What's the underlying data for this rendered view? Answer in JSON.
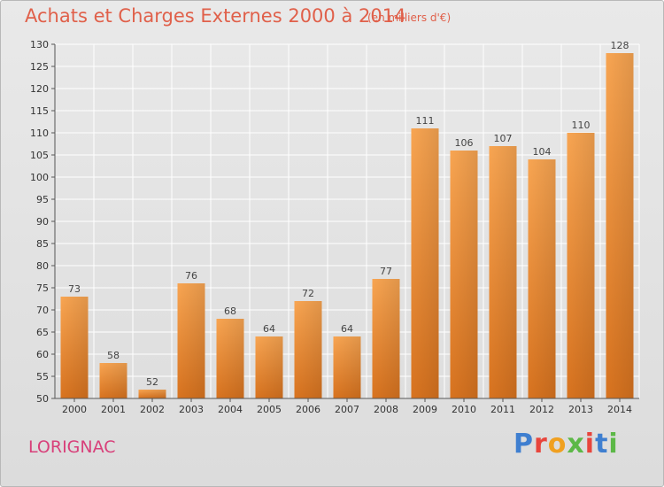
{
  "header": {
    "title": "Achats et Charges Externes 2000 à 2014",
    "subtitle": "(en milliers d'€)"
  },
  "footer": {
    "place": "LORIGNAC",
    "logo_letters": [
      "P",
      "r",
      "o",
      "x",
      "i",
      "t",
      "i"
    ]
  },
  "colors": {
    "title": "#e0604a",
    "place": "#d8407a",
    "bar_top": "#f8a552",
    "bar_bottom": "#d8731f",
    "grid": "#ffffff"
  },
  "chart_data": {
    "type": "bar",
    "title": "Achats et Charges Externes 2000 à 2014",
    "subtitle": "(en milliers d'€)",
    "categories": [
      "2000",
      "2001",
      "2002",
      "2003",
      "2004",
      "2005",
      "2006",
      "2007",
      "2008",
      "2009",
      "2010",
      "2011",
      "2012",
      "2013",
      "2014"
    ],
    "values": [
      73,
      58,
      52,
      76,
      68,
      64,
      72,
      64,
      77,
      111,
      106,
      107,
      104,
      110,
      128
    ],
    "ylim": [
      50,
      130
    ],
    "yticks": [
      50,
      55,
      60,
      65,
      70,
      75,
      80,
      85,
      90,
      95,
      100,
      105,
      110,
      115,
      120,
      125,
      130
    ],
    "grid": true,
    "data_labels": true
  }
}
